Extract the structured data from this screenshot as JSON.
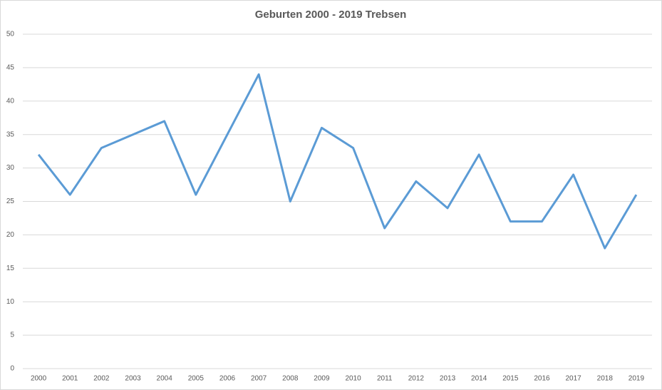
{
  "chart_data": {
    "type": "line",
    "title": "Geburten 2000 - 2019 Trebsen",
    "categories": [
      "2000",
      "2001",
      "2002",
      "2003",
      "2004",
      "2005",
      "2006",
      "2007",
      "2008",
      "2009",
      "2010",
      "2011",
      "2012",
      "2013",
      "2014",
      "2015",
      "2016",
      "2017",
      "2018",
      "2019"
    ],
    "values": [
      32,
      26,
      33,
      35,
      37,
      26,
      35,
      44,
      25,
      36,
      33,
      21,
      28,
      24,
      32,
      22,
      22,
      29,
      18,
      26
    ],
    "color": "#5b9bd5",
    "ylim": [
      0,
      50
    ],
    "yticks": [
      0,
      5,
      10,
      15,
      20,
      25,
      30,
      35,
      40,
      45,
      50
    ],
    "grid": true
  }
}
